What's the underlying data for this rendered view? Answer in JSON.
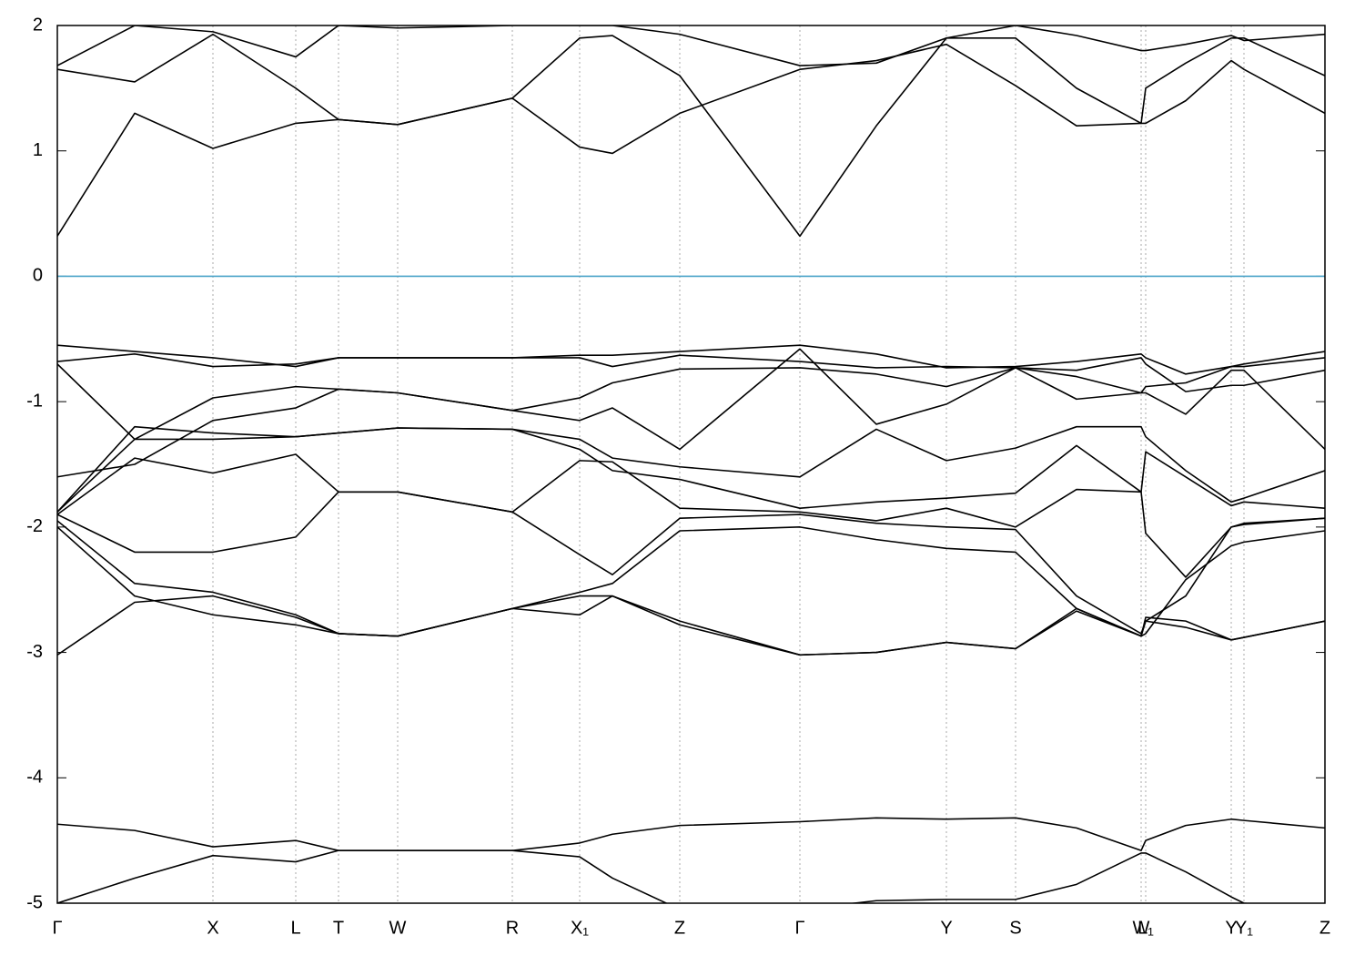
{
  "chart_data": {
    "type": "line",
    "color": "#000000",
    "grid": true,
    "zero_line": {
      "value": 0,
      "color": "#4aa3c8"
    },
    "xlim": [
      0,
      13.93
    ],
    "ylim": [
      -5,
      2
    ],
    "yticks": [
      -5,
      -4,
      -3,
      -2,
      -1,
      0,
      1,
      2
    ],
    "xticks": [
      {
        "value": 0,
        "label": "Γ"
      },
      {
        "value": 1.71,
        "label": "X"
      },
      {
        "value": 2.62,
        "label": "L"
      },
      {
        "value": 3.09,
        "label": "T"
      },
      {
        "value": 3.74,
        "label": "W"
      },
      {
        "value": 5.0,
        "label": "R"
      },
      {
        "value": 5.74,
        "label": "X₁"
      },
      {
        "value": 6.84,
        "label": "Z"
      },
      {
        "value": 8.16,
        "label": "Γ"
      },
      {
        "value": 9.77,
        "label": "Y"
      },
      {
        "value": 10.53,
        "label": "S"
      },
      {
        "value": 11.91,
        "label": "W"
      },
      {
        "value": 11.96,
        "label": "L₁"
      },
      {
        "value": 12.9,
        "label": "Y"
      },
      {
        "value": 13.04,
        "label": "Y₁"
      },
      {
        "value": 13.93,
        "label": "Z"
      }
    ],
    "x": [
      0,
      0.85,
      1.71,
      2.62,
      3.09,
      3.74,
      5.0,
      5.74,
      6.1,
      6.84,
      8.16,
      9.0,
      9.77,
      10.53,
      11.2,
      11.91,
      11.96,
      12.4,
      12.9,
      13.04,
      13.93
    ],
    "series": [
      {
        "values": [
          0.32,
          1.3,
          1.02,
          1.22,
          1.25,
          1.21,
          1.42,
          1.03,
          0.98,
          1.3,
          1.65,
          1.72,
          1.85,
          1.52,
          1.2,
          1.22,
          1.22,
          1.4,
          1.72,
          1.65,
          1.3
        ]
      },
      {
        "values": [
          1.65,
          1.55,
          1.93,
          1.5,
          1.25,
          1.21,
          1.42,
          1.9,
          1.92,
          1.6,
          0.32,
          1.2,
          1.9,
          1.9,
          1.5,
          1.22,
          1.5,
          1.7,
          1.9,
          1.9,
          1.6
        ]
      },
      {
        "values": [
          1.68,
          2.0,
          1.95,
          1.75,
          2.0,
          1.98,
          2.0,
          2.0,
          2.0,
          1.93,
          1.68,
          1.7,
          1.9,
          2.0,
          1.92,
          1.8,
          1.8,
          1.85,
          1.92,
          1.88,
          1.93
        ]
      },
      {
        "values": [
          -0.55,
          -0.6,
          -0.65,
          -0.72,
          -0.65,
          -0.65,
          -0.65,
          -0.63,
          -0.63,
          -0.6,
          -0.55,
          -0.62,
          -0.73,
          -0.72,
          -0.68,
          -0.62,
          -0.65,
          -0.78,
          -0.72,
          -0.7,
          -0.6
        ]
      },
      {
        "values": [
          -0.68,
          -0.62,
          -0.72,
          -0.7,
          -0.65,
          -0.65,
          -0.65,
          -0.65,
          -0.72,
          -0.63,
          -0.68,
          -0.73,
          -0.72,
          -0.73,
          -0.8,
          -0.93,
          -0.88,
          -0.85,
          -0.72,
          -0.72,
          -0.65
        ]
      },
      {
        "values": [
          -0.7,
          -1.3,
          -0.97,
          -0.88,
          -0.9,
          -0.93,
          -1.07,
          -0.97,
          -0.85,
          -0.74,
          -0.73,
          -0.78,
          -0.88,
          -0.73,
          -0.75,
          -0.65,
          -0.7,
          -0.92,
          -0.87,
          -0.87,
          -0.75
        ]
      },
      {
        "values": [
          -1.6,
          -1.5,
          -1.15,
          -1.05,
          -0.9,
          -0.93,
          -1.07,
          -1.15,
          -1.05,
          -1.38,
          -0.58,
          -1.18,
          -1.02,
          -0.73,
          -0.98,
          -0.93,
          -0.93,
          -1.1,
          -0.75,
          -0.75,
          -1.38
        ]
      },
      {
        "values": [
          -1.88,
          -1.2,
          -1.25,
          -1.28,
          -1.25,
          -1.21,
          -1.22,
          -1.3,
          -1.45,
          -1.52,
          -1.6,
          -1.22,
          -1.47,
          -1.37,
          -1.2,
          -1.2,
          -1.28,
          -1.55,
          -1.8,
          -1.77,
          -1.55
        ]
      },
      {
        "values": [
          -1.88,
          -1.3,
          -1.3,
          -1.28,
          -1.25,
          -1.21,
          -1.22,
          -1.38,
          -1.55,
          -1.62,
          -1.85,
          -1.8,
          -1.77,
          -1.73,
          -1.35,
          -1.72,
          -1.4,
          -1.6,
          -1.83,
          -1.8,
          -1.85
        ]
      },
      {
        "values": [
          -1.9,
          -1.45,
          -1.57,
          -1.42,
          -1.72,
          -1.72,
          -1.88,
          -1.47,
          -1.48,
          -1.85,
          -1.88,
          -1.95,
          -1.85,
          -2.0,
          -1.7,
          -1.72,
          -2.05,
          -2.4,
          -2.0,
          -1.98,
          -1.93
        ]
      },
      {
        "values": [
          -1.9,
          -2.2,
          -2.2,
          -2.08,
          -1.72,
          -1.72,
          -1.88,
          -2.22,
          -2.38,
          -1.93,
          -1.9,
          -1.97,
          -2.0,
          -2.02,
          -2.55,
          -2.85,
          -2.75,
          -2.55,
          -2.0,
          -1.97,
          -1.93
        ]
      },
      {
        "values": [
          -1.95,
          -2.45,
          -2.52,
          -2.7,
          -2.85,
          -2.87,
          -2.65,
          -2.52,
          -2.45,
          -2.03,
          -2.0,
          -2.1,
          -2.17,
          -2.2,
          -2.65,
          -2.87,
          -2.85,
          -2.42,
          -2.15,
          -2.12,
          -2.03
        ]
      },
      {
        "values": [
          -2.0,
          -2.55,
          -2.7,
          -2.78,
          -2.85,
          -2.87,
          -2.65,
          -2.7,
          -2.55,
          -2.75,
          -3.02,
          -3.0,
          -2.92,
          -2.97,
          -2.65,
          -2.87,
          -2.72,
          -2.75,
          -2.9,
          -2.88,
          -2.75
        ]
      },
      {
        "values": [
          -3.02,
          -2.6,
          -2.55,
          -2.72,
          -2.85,
          -2.87,
          -2.65,
          -2.55,
          -2.55,
          -2.78,
          -3.02,
          -3.0,
          -2.92,
          -2.97,
          -2.67,
          -2.87,
          -2.75,
          -2.8,
          -2.9,
          -2.88,
          -2.75
        ]
      },
      {
        "values": [
          -4.37,
          -4.42,
          -4.55,
          -4.5,
          -4.58,
          -4.58,
          -4.58,
          -4.52,
          -4.45,
          -4.38,
          -4.35,
          -4.32,
          -4.33,
          -4.32,
          -4.4,
          -4.58,
          -4.5,
          -4.38,
          -4.33,
          -4.34,
          -4.4
        ]
      },
      {
        "values": [
          -5.0,
          -4.8,
          -4.62,
          -4.67,
          -4.58,
          -4.58,
          -4.58,
          -4.63,
          -4.8,
          -5.05,
          -5.05,
          -4.98,
          -4.97,
          -4.97,
          -4.85,
          -4.6,
          -4.6,
          -4.75,
          -4.95,
          -5.0,
          -5.05
        ]
      }
    ]
  }
}
